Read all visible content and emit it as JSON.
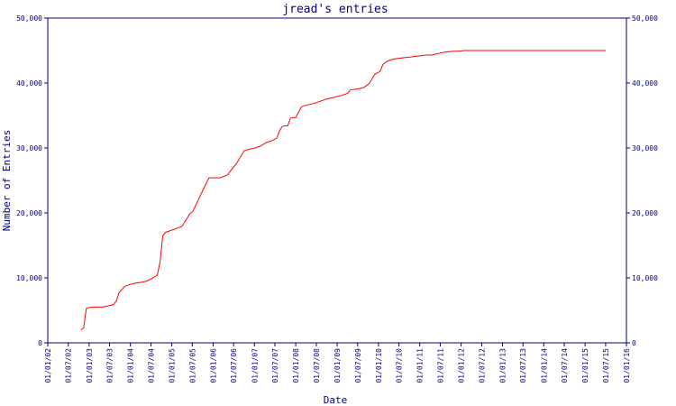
{
  "chart_data": {
    "type": "line",
    "title": "jread's entries",
    "xlabel": "Date",
    "ylabel": "Number of Entries",
    "ylim": [
      0,
      50000
    ],
    "xlim": [
      "2002-01-01",
      "2016-01-01"
    ],
    "grid": false,
    "legend": "none",
    "colors": {
      "axis": "#000080",
      "line": "#ff0000",
      "background": "#ffffff"
    },
    "y_ticks": [
      {
        "value": 0,
        "label": "0"
      },
      {
        "value": 10000,
        "label": "10,000"
      },
      {
        "value": 20000,
        "label": "20,000"
      },
      {
        "value": 30000,
        "label": "30,000"
      },
      {
        "value": 40000,
        "label": "40,000"
      },
      {
        "value": 50000,
        "label": "50,000"
      }
    ],
    "x_ticks": [
      {
        "date": "2002-01-01",
        "label": "01/01/02"
      },
      {
        "date": "2002-07-01",
        "label": "01/07/02"
      },
      {
        "date": "2003-01-01",
        "label": "01/01/03"
      },
      {
        "date": "2003-07-01",
        "label": "01/07/03"
      },
      {
        "date": "2004-01-01",
        "label": "01/01/04"
      },
      {
        "date": "2004-07-01",
        "label": "01/07/04"
      },
      {
        "date": "2005-01-01",
        "label": "01/01/05"
      },
      {
        "date": "2005-07-01",
        "label": "01/07/05"
      },
      {
        "date": "2006-01-01",
        "label": "01/01/06"
      },
      {
        "date": "2006-07-01",
        "label": "01/07/06"
      },
      {
        "date": "2007-01-01",
        "label": "01/01/07"
      },
      {
        "date": "2007-07-01",
        "label": "01/07/07"
      },
      {
        "date": "2008-01-01",
        "label": "01/01/08"
      },
      {
        "date": "2008-07-01",
        "label": "01/07/08"
      },
      {
        "date": "2009-01-01",
        "label": "01/01/09"
      },
      {
        "date": "2009-07-01",
        "label": "01/07/09"
      },
      {
        "date": "2010-01-01",
        "label": "01/01/10"
      },
      {
        "date": "2010-07-01",
        "label": "01/07/10"
      },
      {
        "date": "2011-01-01",
        "label": "01/01/11"
      },
      {
        "date": "2011-07-01",
        "label": "01/07/11"
      },
      {
        "date": "2012-01-01",
        "label": "01/01/12"
      },
      {
        "date": "2012-07-01",
        "label": "01/07/12"
      },
      {
        "date": "2013-01-01",
        "label": "01/01/13"
      },
      {
        "date": "2013-07-01",
        "label": "01/07/13"
      },
      {
        "date": "2014-01-01",
        "label": "01/01/14"
      },
      {
        "date": "2014-07-01",
        "label": "01/07/14"
      },
      {
        "date": "2015-01-01",
        "label": "01/01/15"
      },
      {
        "date": "2015-07-01",
        "label": "01/07/15"
      },
      {
        "date": "2016-01-01",
        "label": "01/01/16"
      }
    ],
    "series": [
      {
        "points": [
          [
            "2002-10-21",
            2000
          ],
          [
            "2002-11-14",
            2300
          ],
          [
            "2002-12-08",
            5300
          ],
          [
            "2003-01-25",
            5500
          ],
          [
            "2003-03-14",
            5500
          ],
          [
            "2003-05-02",
            5500
          ],
          [
            "2003-06-19",
            5700
          ],
          [
            "2003-08-07",
            5900
          ],
          [
            "2003-08-31",
            6500
          ],
          [
            "2003-09-24",
            7800
          ],
          [
            "2003-10-18",
            8200
          ],
          [
            "2003-11-11",
            8700
          ],
          [
            "2003-12-29",
            9000
          ],
          [
            "2004-02-16",
            9200
          ],
          [
            "2004-04-04",
            9300
          ],
          [
            "2004-05-22",
            9500
          ],
          [
            "2004-07-09",
            9900
          ],
          [
            "2004-08-26",
            10400
          ],
          [
            "2004-09-19",
            12500
          ],
          [
            "2004-10-13",
            16500
          ],
          [
            "2004-11-06",
            17000
          ],
          [
            "2004-12-24",
            17300
          ],
          [
            "2005-02-10",
            17600
          ],
          [
            "2005-03-30",
            17900
          ],
          [
            "2005-05-17",
            19200
          ],
          [
            "2005-06-10",
            19900
          ],
          [
            "2005-07-04",
            20200
          ],
          [
            "2005-08-21",
            21900
          ],
          [
            "2005-10-08",
            23700
          ],
          [
            "2005-11-25",
            25400
          ],
          [
            "2006-01-12",
            25400
          ],
          [
            "2006-03-01",
            25400
          ],
          [
            "2006-04-18",
            25700
          ],
          [
            "2006-05-12",
            25900
          ],
          [
            "2006-06-05",
            26500
          ],
          [
            "2006-07-23",
            27500
          ],
          [
            "2006-09-09",
            28900
          ],
          [
            "2006-10-03",
            29600
          ],
          [
            "2006-11-20",
            29800
          ],
          [
            "2007-01-07",
            30000
          ],
          [
            "2007-02-24",
            30300
          ],
          [
            "2007-04-13",
            30800
          ],
          [
            "2007-05-31",
            31100
          ],
          [
            "2007-07-18",
            31500
          ],
          [
            "2007-08-11",
            32700
          ],
          [
            "2007-09-04",
            33300
          ],
          [
            "2007-09-28",
            33400
          ],
          [
            "2007-10-22",
            33400
          ],
          [
            "2007-11-15",
            34600
          ],
          [
            "2007-12-09",
            34700
          ],
          [
            "2008-01-02",
            34700
          ],
          [
            "2008-02-19",
            36300
          ],
          [
            "2008-03-14",
            36500
          ],
          [
            "2008-05-01",
            36700
          ],
          [
            "2008-06-18",
            36900
          ],
          [
            "2008-08-05",
            37200
          ],
          [
            "2008-09-22",
            37500
          ],
          [
            "2008-11-09",
            37700
          ],
          [
            "2008-12-27",
            37900
          ],
          [
            "2009-02-13",
            38100
          ],
          [
            "2009-04-02",
            38400
          ],
          [
            "2009-04-26",
            38900
          ],
          [
            "2009-05-20",
            39000
          ],
          [
            "2009-07-07",
            39100
          ],
          [
            "2009-08-24",
            39300
          ],
          [
            "2009-10-11",
            39900
          ],
          [
            "2009-11-28",
            41300
          ],
          [
            "2010-01-15",
            41800
          ],
          [
            "2010-02-08",
            42800
          ],
          [
            "2010-03-04",
            43200
          ],
          [
            "2010-03-28",
            43400
          ],
          [
            "2010-05-15",
            43700
          ],
          [
            "2010-07-02",
            43800
          ],
          [
            "2010-08-19",
            43900
          ],
          [
            "2010-10-06",
            44000
          ],
          [
            "2010-11-23",
            44100
          ],
          [
            "2011-01-10",
            44200
          ],
          [
            "2011-02-27",
            44300
          ],
          [
            "2011-04-16",
            44300
          ],
          [
            "2011-06-03",
            44500
          ],
          [
            "2011-07-21",
            44700
          ],
          [
            "2011-09-07",
            44800
          ],
          [
            "2011-10-25",
            44900
          ],
          [
            "2011-12-12",
            44900
          ],
          [
            "2012-01-29",
            45000
          ],
          [
            "2012-03-17",
            45000
          ],
          [
            "2012-05-04",
            45000
          ],
          [
            "2012-06-21",
            45000
          ],
          [
            "2012-08-08",
            45000
          ],
          [
            "2012-09-25",
            45000
          ],
          [
            "2012-11-12",
            45000
          ],
          [
            "2012-12-30",
            45000
          ],
          [
            "2013-02-16",
            45000
          ],
          [
            "2013-04-05",
            45000
          ],
          [
            "2013-05-23",
            45000
          ],
          [
            "2013-07-10",
            45000
          ],
          [
            "2013-08-27",
            45000
          ],
          [
            "2013-10-14",
            45000
          ],
          [
            "2013-12-01",
            45000
          ],
          [
            "2014-01-18",
            45000
          ],
          [
            "2014-03-07",
            45000
          ],
          [
            "2014-04-24",
            45000
          ],
          [
            "2014-06-11",
            45000
          ],
          [
            "2014-07-29",
            45000
          ],
          [
            "2014-09-15",
            45000
          ],
          [
            "2014-11-02",
            45000
          ],
          [
            "2014-12-20",
            45000
          ],
          [
            "2015-02-06",
            45000
          ],
          [
            "2015-03-26",
            45000
          ],
          [
            "2015-05-13",
            45000
          ],
          [
            "2015-06-30",
            45000
          ]
        ]
      }
    ]
  }
}
